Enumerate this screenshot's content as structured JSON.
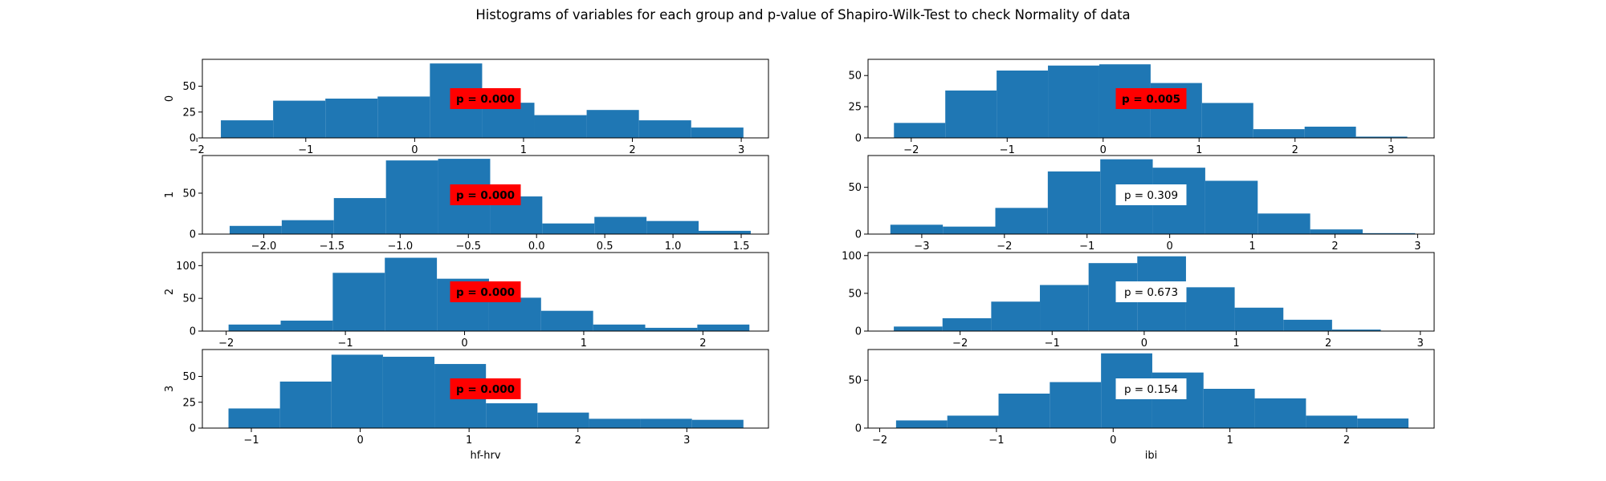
{
  "title": "Histograms of variables for each group and p-value of Shapiro-Wilk-Test to check Normality of data",
  "colors": {
    "bar": "#1f77b4",
    "significant_box": "#ff0000",
    "normal_box": "#ffffff",
    "axis": "#000000"
  },
  "chart_data": [
    {
      "type": "bar",
      "row": 0,
      "col": 0,
      "ylabel": "0",
      "xlabel": "",
      "xlim": [
        -1.95,
        3.25
      ],
      "ylim": [
        0,
        76
      ],
      "x_ticks": [
        -2,
        -1,
        0,
        1,
        2,
        3
      ],
      "y_ticks": [
        0,
        25,
        50
      ],
      "bin_edges": [
        -1.78,
        -1.3,
        -0.82,
        -0.34,
        0.14,
        0.62,
        1.1,
        1.58,
        2.06,
        2.54,
        3.02
      ],
      "counts": [
        17,
        36,
        38,
        40,
        72,
        34,
        22,
        27,
        17,
        10
      ],
      "p_label": "p = 0.000",
      "significant": true
    },
    {
      "type": "bar",
      "row": 0,
      "col": 1,
      "ylabel": "",
      "xlabel": "",
      "xlim": [
        -2.45,
        3.45
      ],
      "ylim": [
        0,
        63
      ],
      "x_ticks": [
        -2,
        -1,
        0,
        1,
        2,
        3
      ],
      "y_ticks": [
        0,
        25,
        50
      ],
      "bin_edges": [
        -2.18,
        -1.645,
        -1.11,
        -0.575,
        -0.04,
        0.495,
        1.03,
        1.565,
        2.1,
        2.635,
        3.17
      ],
      "counts": [
        12,
        38,
        54,
        58,
        59,
        44,
        28,
        7,
        9,
        1
      ],
      "p_label": "p = 0.005",
      "significant": true
    },
    {
      "type": "bar",
      "row": 1,
      "col": 0,
      "ylabel": "1",
      "xlabel": "",
      "xlim": [
        -2.45,
        1.7
      ],
      "ylim": [
        0,
        96
      ],
      "x_ticks": [
        -2.0,
        -1.5,
        -1.0,
        -0.5,
        0.0,
        0.5,
        1.0,
        1.5
      ],
      "y_ticks": [
        0,
        50
      ],
      "x_tick_labels": [
        "−2.0",
        "−1.5",
        "−1.0",
        "−0.5",
        "0.0",
        "0.5",
        "1.0",
        "1.5"
      ],
      "bin_edges": [
        -2.25,
        -1.868,
        -1.486,
        -1.104,
        -0.722,
        -0.34,
        0.042,
        0.424,
        0.806,
        1.188,
        1.57
      ],
      "counts": [
        10,
        17,
        44,
        90,
        92,
        46,
        13,
        21,
        16,
        4
      ],
      "p_label": "p = 0.000",
      "significant": true
    },
    {
      "type": "bar",
      "row": 1,
      "col": 1,
      "ylabel": "",
      "xlabel": "",
      "xlim": [
        -3.65,
        3.2
      ],
      "ylim": [
        0,
        84
      ],
      "x_ticks": [
        -3,
        -2,
        -1,
        0,
        1,
        2,
        3
      ],
      "y_ticks": [
        0,
        50
      ],
      "bin_edges": [
        -3.38,
        -2.745,
        -2.11,
        -1.475,
        -0.84,
        -0.205,
        0.43,
        1.065,
        1.7,
        2.335,
        2.97
      ],
      "counts": [
        10,
        8,
        28,
        67,
        80,
        71,
        57,
        22,
        5,
        1
      ],
      "p_label": "p = 0.309",
      "significant": false
    },
    {
      "type": "bar",
      "row": 2,
      "col": 0,
      "ylabel": "2",
      "xlabel": "",
      "xlim": [
        -2.2,
        2.55
      ],
      "ylim": [
        0,
        120
      ],
      "x_ticks": [
        -2,
        -1,
        0,
        1,
        2
      ],
      "y_ticks": [
        0,
        50,
        100
      ],
      "bin_edges": [
        -1.98,
        -1.543,
        -1.106,
        -0.669,
        -0.232,
        0.205,
        0.642,
        1.079,
        1.516,
        1.953,
        2.39
      ],
      "counts": [
        10,
        16,
        89,
        112,
        80,
        51,
        31,
        10,
        5,
        10
      ],
      "p_label": "p = 0.000",
      "significant": true
    },
    {
      "type": "bar",
      "row": 2,
      "col": 1,
      "ylabel": "",
      "xlabel": "",
      "xlim": [
        -3.0,
        3.15
      ],
      "ylim": [
        0,
        104
      ],
      "x_ticks": [
        -2,
        -1,
        0,
        1,
        2,
        3
      ],
      "y_ticks": [
        0,
        50,
        100
      ],
      "bin_edges": [
        -2.72,
        -2.191,
        -1.662,
        -1.133,
        -0.604,
        -0.075,
        0.454,
        0.983,
        1.512,
        2.041,
        2.57
      ],
      "counts": [
        6,
        17,
        39,
        61,
        90,
        99,
        58,
        31,
        15,
        2
      ],
      "p_label": "p = 0.673",
      "significant": false
    },
    {
      "type": "bar",
      "row": 3,
      "col": 0,
      "ylabel": "3",
      "xlabel": "hf-hrv",
      "xlim": [
        -1.45,
        3.75
      ],
      "ylim": [
        0,
        76
      ],
      "x_ticks": [
        -1,
        0,
        1,
        2,
        3
      ],
      "y_ticks": [
        0,
        25,
        50
      ],
      "bin_edges": [
        -1.21,
        -0.737,
        -0.264,
        0.209,
        0.682,
        1.155,
        1.628,
        2.101,
        2.574,
        3.047,
        3.52
      ],
      "counts": [
        19,
        45,
        71,
        69,
        62,
        24,
        15,
        9,
        9,
        8
      ],
      "p_label": "p = 0.000",
      "significant": true
    },
    {
      "type": "bar",
      "row": 3,
      "col": 1,
      "ylabel": "",
      "xlabel": "ibi",
      "xlim": [
        -2.1,
        2.75
      ],
      "ylim": [
        0,
        82
      ],
      "x_ticks": [
        -2,
        -1,
        0,
        1,
        2
      ],
      "y_ticks": [
        0,
        50
      ],
      "bin_edges": [
        -1.86,
        -1.421,
        -0.982,
        -0.543,
        -0.104,
        0.335,
        0.774,
        1.213,
        1.652,
        2.091,
        2.53
      ],
      "counts": [
        8,
        13,
        36,
        48,
        78,
        58,
        41,
        31,
        13,
        10
      ],
      "p_label": "p = 0.154",
      "significant": false
    }
  ]
}
